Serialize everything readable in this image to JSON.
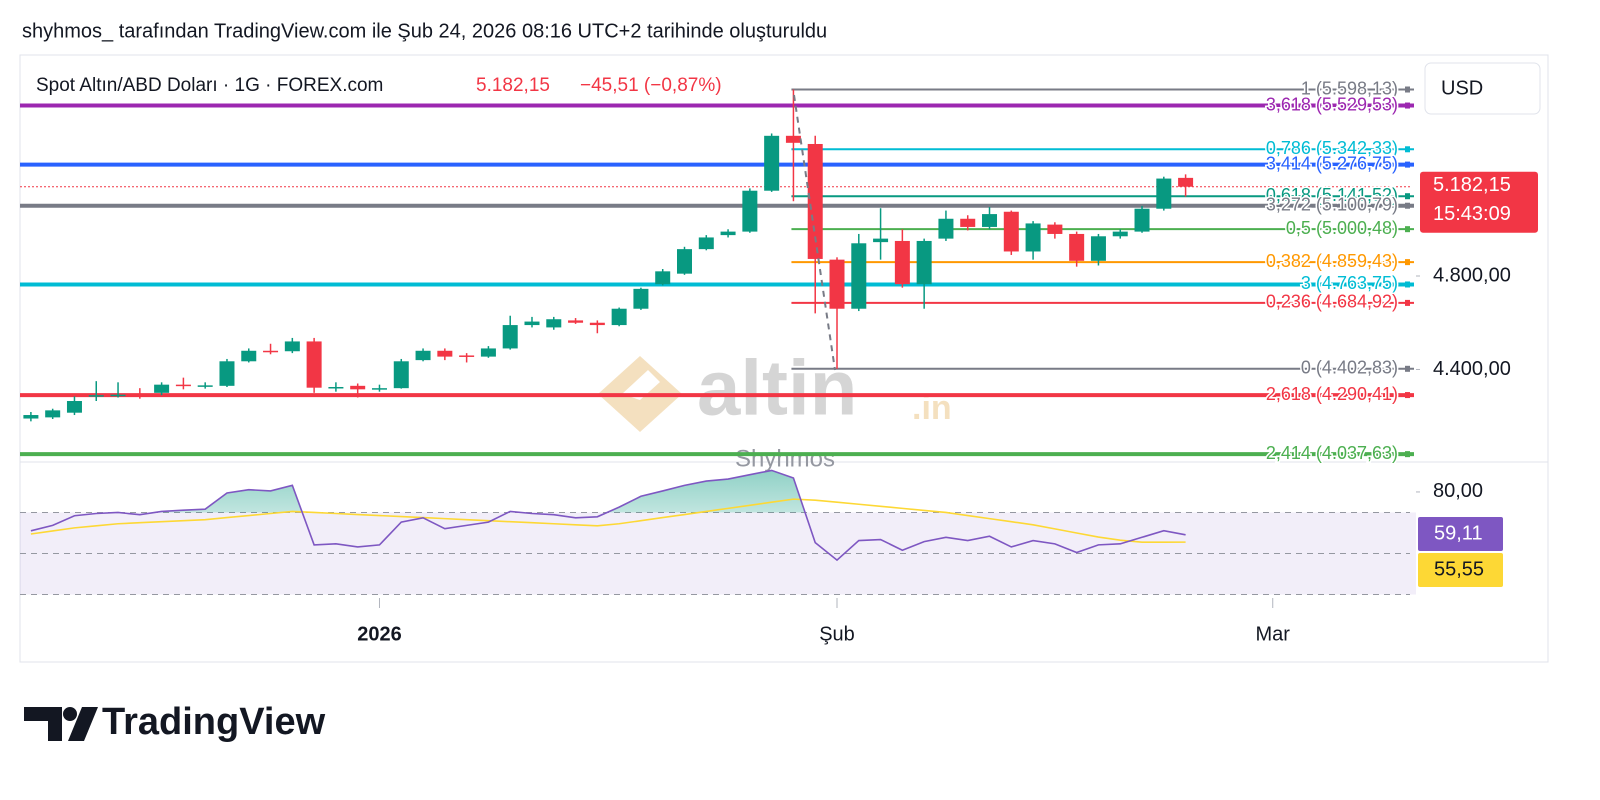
{
  "header": {
    "caption": "shyhmos_ tarafından TradingView.com ile Şub 24, 2026 08:16 UTC+2 tarihinde oluşturuldu"
  },
  "footer": {
    "brand": "TradingView"
  },
  "chart_data": [
    {
      "type": "candlestick",
      "title": "Spot Altın/ABD Doları · 1G · FOREX.com",
      "last": "5.182,15",
      "change": "−45,51 (−0,87%)",
      "currency": "USD",
      "categories": [
        null,
        null,
        null,
        null,
        null,
        null,
        null,
        null,
        null,
        null,
        null,
        null,
        null,
        null,
        null,
        null,
        null,
        null,
        null,
        null,
        null,
        null,
        null,
        null,
        null,
        null,
        null,
        null,
        null,
        null,
        null,
        null,
        null,
        null,
        null,
        null,
        null,
        null,
        null,
        null,
        null,
        null,
        null,
        null,
        null,
        null,
        null,
        null,
        null,
        null,
        null,
        null,
        null,
        null
      ],
      "open": [
        4190,
        4195,
        4215,
        4285,
        4290,
        4292,
        4300,
        4335,
        4330,
        4330,
        4435,
        4480,
        4478,
        4520,
        4322,
        4330,
        4315,
        4320,
        4440,
        4480,
        4460,
        4455,
        4490,
        4590,
        4580,
        4610,
        4600,
        4590,
        4660,
        4765,
        4810,
        4915,
        4975,
        4990,
        5165,
        5400,
        5365,
        4870,
        4660,
        4945,
        4950,
        4765,
        4960,
        5045,
        5010,
        5075,
        4905,
        5020,
        4980,
        4865,
        4970,
        4990,
        5088,
        5220
      ],
      "high": [
        4218,
        4232,
        4285,
        4350,
        4345,
        4320,
        4345,
        4365,
        4345,
        4445,
        4490,
        4510,
        4535,
        4535,
        4345,
        4340,
        4335,
        4445,
        4490,
        4490,
        4470,
        4500,
        4630,
        4625,
        4625,
        4620,
        4610,
        4665,
        4750,
        4830,
        4925,
        4975,
        5000,
        5175,
        5410,
        5598.13,
        5400,
        4880,
        4980,
        5090,
        5000,
        4960,
        5080,
        5060,
        5095,
        5080,
        5035,
        5030,
        4990,
        4980,
        5000,
        5100,
        5225,
        5235
      ],
      "low": [
        4178,
        4188,
        4205,
        4265,
        4280,
        4275,
        4290,
        4315,
        4318,
        4325,
        4430,
        4465,
        4470,
        4300,
        4305,
        4280,
        4305,
        4318,
        4435,
        4440,
        4430,
        4450,
        4485,
        4580,
        4570,
        4595,
        4555,
        4585,
        4655,
        4760,
        4805,
        4910,
        4965,
        4985,
        5160,
        5120,
        4640,
        4402.83,
        4650,
        4870,
        4750,
        4660,
        4950,
        4995,
        5000,
        4890,
        4870,
        4960,
        4840,
        4845,
        4960,
        4985,
        5080,
        5140
      ],
      "close": [
        4205,
        4225,
        4265,
        4290,
        4292,
        4288,
        4335,
        4330,
        4332,
        4435,
        4480,
        4478,
        4520,
        4322,
        4325,
        4315,
        4320,
        4435,
        4480,
        4455,
        4455,
        4490,
        4590,
        4605,
        4615,
        4600,
        4590,
        4660,
        4745,
        4820,
        4915,
        4965,
        4990,
        5165,
        5400,
        5370,
        4873,
        4660,
        4940,
        4960,
        4765,
        4950,
        5045,
        5010,
        5065,
        4905,
        5025,
        4980,
        4865,
        4970,
        4990,
        5088,
        5217,
        5182.15
      ],
      "up_color": "#089981",
      "down_color": "#f23645",
      "xlim": [
        -0.5,
        63.3
      ],
      "xticks": [
        {
          "value": 16,
          "label": "2026"
        },
        {
          "value": 37,
          "label": "Şub"
        },
        {
          "value": 57,
          "label": "Mar"
        }
      ],
      "ylim": [
        4004,
        5733
      ],
      "yticks": [
        {
          "value": 4800,
          "label": "4.800,00"
        },
        {
          "value": 4400,
          "label": "4.400,00"
        }
      ],
      "levels": [
        {
          "label": "1 (5.598,13)",
          "value": 5598.13,
          "color": "#787b86",
          "extent": "fib"
        },
        {
          "label": "3,618 (5.529,53)",
          "value": 5529.53,
          "color": "#9c27b0",
          "extent": "full"
        },
        {
          "label": "0,786 (5.342,33)",
          "value": 5342.33,
          "color": "#00bcd4",
          "extent": "fib"
        },
        {
          "label": "3,414 (5.276,75)",
          "value": 5276.75,
          "color": "#2962ff",
          "extent": "full"
        },
        {
          "label": "0,618 (5.141,52)",
          "value": 5141.52,
          "color": "#089981",
          "extent": "fib"
        },
        {
          "label": "3,272 (5.100,79)",
          "value": 5100.79,
          "color": "#787b86",
          "extent": "full"
        },
        {
          "label": "0,5 (5.000,48)",
          "value": 5000.48,
          "color": "#4caf50",
          "extent": "fib"
        },
        {
          "label": "0,382 (4.859,43)",
          "value": 4859.43,
          "color": "#ff9800",
          "extent": "fib"
        },
        {
          "label": "3 (4.763,75)",
          "value": 4763.75,
          "color": "#00bcd4",
          "extent": "full"
        },
        {
          "label": "0,236 (4.684,92)",
          "value": 4684.92,
          "color": "#f23645",
          "extent": "fib"
        },
        {
          "label": "0 (4.402,83)",
          "value": 4402.83,
          "color": "#787b86",
          "extent": "fib"
        },
        {
          "label": "2,618 (4.290,41)",
          "value": 4290.41,
          "color": "#f23645",
          "extent": "full"
        },
        {
          "label": "2,414 (4.037,63)",
          "value": 4037.63,
          "color": "#4caf50",
          "extent": "full"
        }
      ],
      "price_tag": {
        "value": 5182.15,
        "label": "5.182,15",
        "countdown": "15:43:09",
        "color": "#f23645"
      },
      "watermark": {
        "brand": "altin",
        "suffix": ".in",
        "author": "Shyhmos"
      }
    },
    {
      "type": "line",
      "ylim": [
        24.9,
        94.6
      ],
      "yticks": [
        {
          "value": 80,
          "label": "80,00"
        }
      ],
      "levels": [
        70,
        50,
        30
      ],
      "series": [
        {
          "color": "#7e57c2",
          "values": [
            61.05,
            63.7,
            68.4,
            69.5,
            70,
            68.9,
            70.5,
            71.1,
            71.6,
            79.5,
            81.1,
            80.5,
            83.2,
            54.2,
            54.7,
            53.2,
            54.2,
            65.3,
            67.4,
            62.1,
            63.7,
            65.3,
            70.5,
            69.5,
            68.9,
            67.4,
            67.9,
            72.6,
            77.9,
            80.5,
            83.2,
            85.3,
            86.3,
            88.4,
            90.5,
            86.8,
            55.3,
            46.8,
            56.3,
            56.8,
            51.6,
            55.8,
            57.9,
            56.3,
            58.4,
            53.2,
            56.3,
            54.7,
            50.5,
            54.2,
            54.7,
            57.9,
            61.1,
            59.11
          ],
          "last_label": "59,11"
        },
        {
          "color": "#fdd835",
          "values": [
            59.5,
            61,
            62.5,
            63.5,
            64.5,
            65,
            65.5,
            66,
            66.5,
            67.5,
            68.5,
            69.5,
            70.5,
            70,
            69.5,
            69,
            68.5,
            68,
            67.5,
            67,
            66.5,
            66,
            65.5,
            65,
            64.5,
            64,
            63.5,
            64.5,
            66,
            67.5,
            69,
            70.5,
            72,
            73.5,
            75,
            76.5,
            76,
            75,
            74,
            73,
            72,
            71,
            70,
            68.5,
            67,
            65.5,
            64,
            62,
            60,
            58,
            56.5,
            55.5,
            55.5,
            55.55
          ],
          "last_label": "55,55"
        }
      ]
    }
  ]
}
